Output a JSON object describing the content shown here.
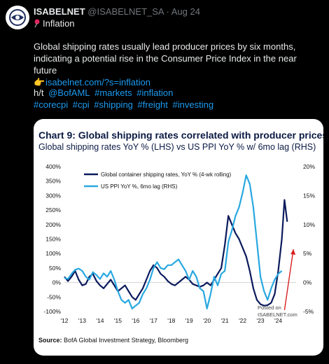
{
  "tweet": {
    "display_name": "ISABELNET",
    "handle": "@ISABELNET_SA",
    "separator": "·",
    "date": "Aug 24",
    "category": "Inflation",
    "text": "Global shipping rates usually lead producer prices by six months, indicating a potential rise in the Consumer Price Index in the near future",
    "link": "isabelnet.com/?s=inflation",
    "hat_tip_prefix": "h/t",
    "mention": "@BofAML",
    "hashtags": [
      "#markets",
      "#inflation",
      "#corecpi",
      "#cpi",
      "#shipping",
      "#freight",
      "#investing"
    ]
  },
  "chart_data": {
    "type": "line",
    "title": "Chart 9: Global shipping rates correlated with producer prices",
    "subtitle": "Global shipping rates YoY % (LHS) vs US PPI YoY % w/ 6mo lag (RHS)",
    "source_label": "Source:",
    "source_text": "BofA Global Investment Strategy, Bloomberg",
    "watermark_line1": "Posted on",
    "watermark_line2": "ISABELNET.com",
    "x_ticks": [
      "'12",
      "'13",
      "'14",
      "'15",
      "'16",
      "'17",
      "'18",
      "'19",
      "'20",
      "'21",
      "'22",
      "'23",
      "'24"
    ],
    "xlim": [
      2012,
      2025
    ],
    "y_left_ticks": [
      "400%",
      "350%",
      "300%",
      "250%",
      "200%",
      "150%",
      "100%",
      "50%",
      "0%",
      "-50%",
      "-100%"
    ],
    "ylim_left": [
      -100,
      400
    ],
    "y_right_ticks": [
      "20%",
      "15%",
      "10%",
      "5%",
      "0%",
      "-5%"
    ],
    "ylim_right": [
      -5,
      20
    ],
    "colors": {
      "shipping": "#0b1a5c",
      "ppi": "#29a8e0",
      "arrow": "#d62020"
    },
    "series": [
      {
        "name": "Global container shipping rates, YoY % (4-wk rolling)",
        "axis": "left",
        "points": [
          [
            2012.0,
            20
          ],
          [
            2012.2,
            5
          ],
          [
            2012.4,
            20
          ],
          [
            2012.6,
            40
          ],
          [
            2012.8,
            10
          ],
          [
            2013.0,
            -10
          ],
          [
            2013.2,
            -5
          ],
          [
            2013.4,
            20
          ],
          [
            2013.6,
            30
          ],
          [
            2013.8,
            5
          ],
          [
            2014.0,
            -10
          ],
          [
            2014.2,
            -20
          ],
          [
            2014.4,
            -5
          ],
          [
            2014.6,
            10
          ],
          [
            2014.8,
            -10
          ],
          [
            2015.0,
            -30
          ],
          [
            2015.2,
            -20
          ],
          [
            2015.4,
            -10
          ],
          [
            2015.6,
            -30
          ],
          [
            2015.8,
            -50
          ],
          [
            2016.0,
            -60
          ],
          [
            2016.2,
            -40
          ],
          [
            2016.4,
            -20
          ],
          [
            2016.6,
            10
          ],
          [
            2016.8,
            40
          ],
          [
            2017.0,
            60
          ],
          [
            2017.2,
            50
          ],
          [
            2017.4,
            30
          ],
          [
            2017.6,
            20
          ],
          [
            2017.8,
            5
          ],
          [
            2018.0,
            -5
          ],
          [
            2018.2,
            -10
          ],
          [
            2018.4,
            0
          ],
          [
            2018.6,
            10
          ],
          [
            2018.8,
            20
          ],
          [
            2019.0,
            10
          ],
          [
            2019.2,
            -5
          ],
          [
            2019.4,
            -10
          ],
          [
            2019.6,
            -15
          ],
          [
            2019.8,
            -10
          ],
          [
            2020.0,
            0
          ],
          [
            2020.2,
            -10
          ],
          [
            2020.4,
            10
          ],
          [
            2020.6,
            30
          ],
          [
            2020.8,
            50
          ],
          [
            2021.0,
            130
          ],
          [
            2021.2,
            230
          ],
          [
            2021.4,
            200
          ],
          [
            2021.6,
            170
          ],
          [
            2021.8,
            150
          ],
          [
            2022.0,
            120
          ],
          [
            2022.2,
            90
          ],
          [
            2022.4,
            40
          ],
          [
            2022.6,
            -20
          ],
          [
            2022.8,
            -60
          ],
          [
            2023.0,
            -75
          ],
          [
            2023.2,
            -80
          ],
          [
            2023.4,
            -78
          ],
          [
            2023.6,
            -70
          ],
          [
            2023.8,
            -40
          ],
          [
            2024.0,
            40
          ],
          [
            2024.2,
            150
          ],
          [
            2024.35,
            285
          ],
          [
            2024.5,
            210
          ]
        ]
      },
      {
        "name": "US PPI YoY %, 6mo lag (RHS)",
        "axis": "right",
        "points": [
          [
            2012.0,
            0.8
          ],
          [
            2012.2,
            0.6
          ],
          [
            2012.4,
            1.5
          ],
          [
            2012.6,
            2.2
          ],
          [
            2012.8,
            2.4
          ],
          [
            2013.0,
            2.0
          ],
          [
            2013.2,
            1.0
          ],
          [
            2013.4,
            0.5
          ],
          [
            2013.6,
            1.8
          ],
          [
            2013.8,
            1.3
          ],
          [
            2014.0,
            0.6
          ],
          [
            2014.2,
            1.6
          ],
          [
            2014.4,
            1.0
          ],
          [
            2014.6,
            2.0
          ],
          [
            2014.8,
            0.5
          ],
          [
            2015.0,
            -1.5
          ],
          [
            2015.2,
            -3.0
          ],
          [
            2015.4,
            -3.5
          ],
          [
            2015.6,
            -3.0
          ],
          [
            2015.8,
            -4.5
          ],
          [
            2016.0,
            -4.0
          ],
          [
            2016.2,
            -3.5
          ],
          [
            2016.4,
            -2.0
          ],
          [
            2016.6,
            -1.0
          ],
          [
            2016.8,
            0.5
          ],
          [
            2017.0,
            2.5
          ],
          [
            2017.2,
            3.5
          ],
          [
            2017.4,
            2.5
          ],
          [
            2017.6,
            2.3
          ],
          [
            2017.8,
            3.0
          ],
          [
            2018.0,
            3.0
          ],
          [
            2018.2,
            3.5
          ],
          [
            2018.4,
            4.0
          ],
          [
            2018.6,
            3.0
          ],
          [
            2018.8,
            2.0
          ],
          [
            2019.0,
            0.5
          ],
          [
            2019.2,
            2.0
          ],
          [
            2019.4,
            1.0
          ],
          [
            2019.6,
            -1.0
          ],
          [
            2019.8,
            -1.5
          ],
          [
            2020.0,
            -4.5
          ],
          [
            2020.2,
            -2.0
          ],
          [
            2020.4,
            1.0
          ],
          [
            2020.6,
            -0.5
          ],
          [
            2020.8,
            1.5
          ],
          [
            2021.0,
            2.0
          ],
          [
            2021.2,
            7.0
          ],
          [
            2021.4,
            9.0
          ],
          [
            2021.6,
            11.5
          ],
          [
            2021.8,
            13.0
          ],
          [
            2022.0,
            15.5
          ],
          [
            2022.2,
            18.5
          ],
          [
            2022.4,
            17.0
          ],
          [
            2022.6,
            13.0
          ],
          [
            2022.8,
            7.0
          ],
          [
            2023.0,
            1.0
          ],
          [
            2023.2,
            -1.5
          ],
          [
            2023.4,
            -3.0
          ],
          [
            2023.6,
            -1.0
          ],
          [
            2023.8,
            0.5
          ],
          [
            2024.0,
            1.5
          ],
          [
            2024.2,
            2.0
          ]
        ]
      }
    ],
    "legend_position": "top-left"
  }
}
